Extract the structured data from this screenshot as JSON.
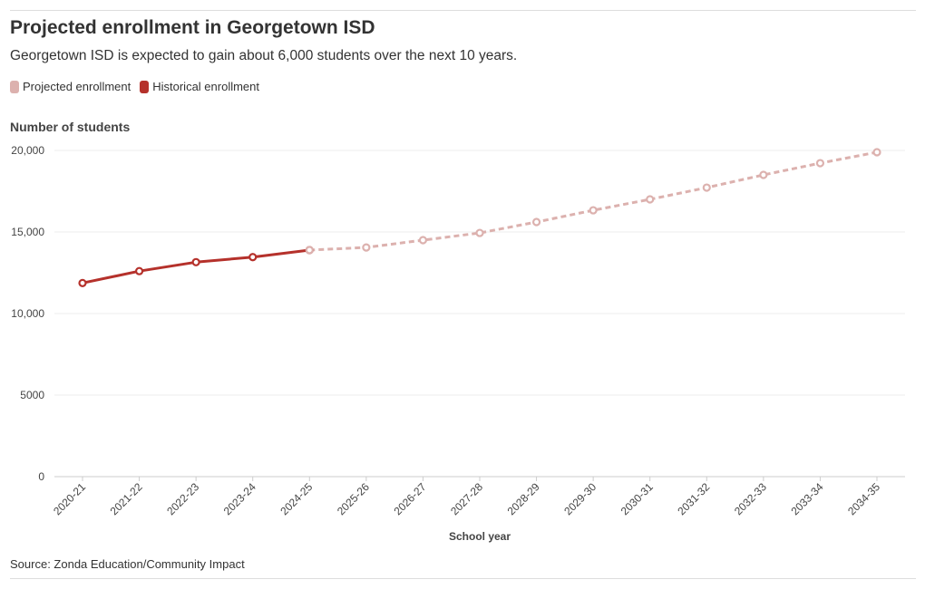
{
  "chart_data": {
    "type": "line",
    "title": "Projected enrollment in Georgetown ISD",
    "subtitle": "Georgetown ISD is expected to gain about 6,000 students over the next 10 years.",
    "ylabel": "Number of students",
    "xlabel": "School year",
    "source": "Source: Zonda Education/Community Impact",
    "ylim": [
      0,
      20000
    ],
    "yticks": [
      0,
      5000,
      10000,
      15000,
      20000
    ],
    "ytick_labels": [
      "0",
      "5000",
      "10,000",
      "15,000",
      "20,000"
    ],
    "grid": true,
    "legend_placement": "top-left",
    "categories": [
      "2020-21",
      "2021-22",
      "2022-23",
      "2023-24",
      "2024-25",
      "2025-26",
      "2026-27",
      "2027-28",
      "2028-29",
      "2029-30",
      "2030-31",
      "2031-32",
      "2032-33",
      "2033-34",
      "2034-35"
    ],
    "series": [
      {
        "name": "Projected enrollment",
        "color": "#dcb1ae",
        "style": "dashed",
        "values": [
          null,
          null,
          null,
          null,
          13890,
          14050,
          14500,
          14940,
          15610,
          16330,
          17000,
          17720,
          18500,
          19220,
          19890
        ]
      },
      {
        "name": "Historical enrollment",
        "color": "#b5312b",
        "style": "solid",
        "values": [
          11870,
          12600,
          13150,
          13460,
          13890,
          null,
          null,
          null,
          null,
          null,
          null,
          null,
          null,
          null,
          null
        ]
      }
    ]
  }
}
